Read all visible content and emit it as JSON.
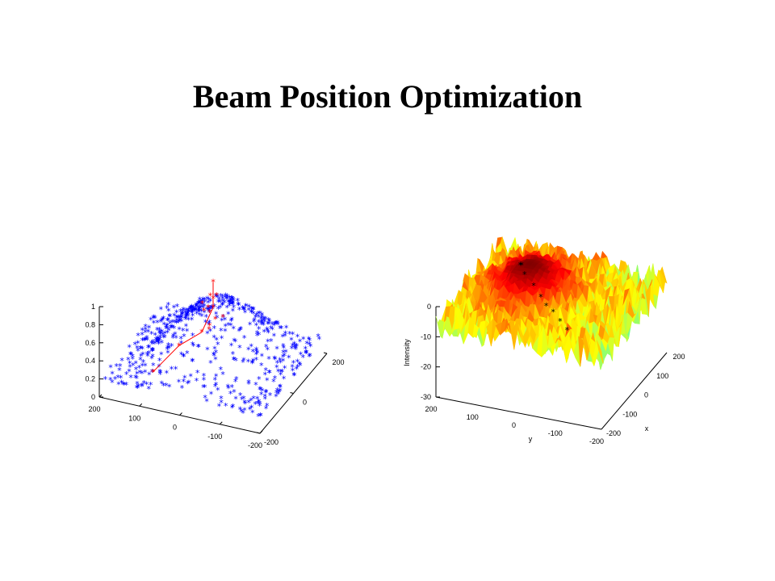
{
  "slide": {
    "title": "Beam Position Optimization"
  },
  "chart_data": [
    {
      "type": "scatter",
      "title": "",
      "xlabel": "",
      "ylabel": "",
      "zlabel": "",
      "x_ticks": [
        "200",
        "100",
        "0",
        "-100",
        "-200"
      ],
      "y_ticks": [
        "200",
        "0",
        "-200"
      ],
      "z_ticks": [
        "0",
        "0.2",
        "0.4",
        "0.6",
        "0.8",
        "1"
      ],
      "xlim": [
        -200,
        200
      ],
      "ylim": [
        -200,
        200
      ],
      "zlim": [
        0,
        1
      ],
      "series": [
        {
          "marker": "*",
          "color": "#0000ff",
          "values": "sampled intensity points over a Gaussian surface, peak ~0.8 near (0,0)"
        },
        {
          "marker": "*-",
          "color": "#ff0000",
          "x": [
            0,
            0,
            0,
            20,
            60,
            100
          ],
          "y": [
            0,
            0,
            0,
            -20,
            -60,
            -120
          ],
          "z": [
            1.03,
            0.85,
            0.75,
            0.5,
            0.4,
            0.2
          ]
        }
      ]
    },
    {
      "type": "surface",
      "title": "",
      "xlabel": "y",
      "ylabel": "x",
      "zlabel": "Intensity",
      "x_ticks": [
        "200",
        "100",
        "0",
        "-100",
        "-200"
      ],
      "y_ticks": [
        "200",
        "100",
        "0",
        "-100",
        "-200"
      ],
      "z_ticks": [
        "0",
        "-10",
        "-20",
        "-30"
      ],
      "xlim": [
        -200,
        200
      ],
      "ylim": [
        -200,
        200
      ],
      "zlim": [
        -30,
        0
      ],
      "colormap": "jet",
      "overlay_marker": "*",
      "overlay_color": "#000000"
    }
  ]
}
